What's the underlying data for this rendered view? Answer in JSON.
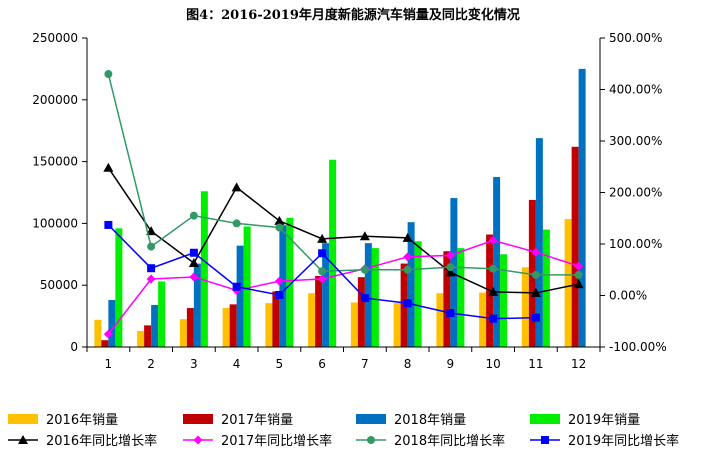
{
  "chart_data": {
    "type": "bar",
    "title": "图4：2016-2019年月度新能源汽车销量及同比变化情况",
    "categories": [
      "1",
      "2",
      "3",
      "4",
      "5",
      "6",
      "7",
      "8",
      "9",
      "10",
      "11",
      "12"
    ],
    "y_left": {
      "min": 0,
      "max": 250000,
      "ticks": [
        "0",
        "50000",
        "100000",
        "150000",
        "200000",
        "250000"
      ],
      "tick_values": [
        0,
        50000,
        100000,
        150000,
        200000,
        250000
      ]
    },
    "y_right": {
      "min": -100,
      "max": 500,
      "ticks": [
        "-100.00%",
        "0.00%",
        "100.00%",
        "200.00%",
        "300.00%",
        "400.00%",
        "500.00%"
      ],
      "tick_values": [
        -100,
        0,
        100,
        200,
        300,
        400,
        500
      ]
    },
    "series": [
      {
        "name": "2016年销量",
        "type": "bar",
        "axis": "left",
        "color": "#FFC000",
        "values": [
          22000,
          13000,
          22500,
          31500,
          35500,
          43500,
          36000,
          35500,
          43500,
          44000,
          64500,
          103500
        ]
      },
      {
        "name": "2017年销量",
        "type": "bar",
        "axis": "left",
        "color": "#C00000",
        "values": [
          5500,
          17500,
          31500,
          34500,
          45000,
          57500,
          56500,
          67500,
          77500,
          91000,
          119000,
          162000
        ]
      },
      {
        "name": "2018年销量",
        "type": "bar",
        "axis": "left",
        "color": "#0070C0",
        "values": [
          38000,
          34000,
          67500,
          82000,
          98500,
          84000,
          84000,
          101000,
          120500,
          137500,
          169000,
          225000
        ]
      },
      {
        "name": "2019年销量",
        "type": "bar",
        "axis": "left",
        "color": "#00EE00",
        "values": [
          96000,
          53000,
          126000,
          97500,
          104500,
          151500,
          80000,
          85500,
          80000,
          75000,
          95000,
          null
        ]
      },
      {
        "name": "2016年同比增长率",
        "type": "line",
        "axis": "right",
        "color": "#000000",
        "marker": "triangle",
        "values": [
          248,
          125,
          63,
          210,
          145,
          110,
          115,
          112,
          45,
          7,
          5,
          22
        ]
      },
      {
        "name": "2017年同比增长率",
        "type": "line",
        "axis": "right",
        "color": "#FF00FF",
        "marker": "diamond",
        "values": [
          -75,
          32,
          36,
          10,
          28,
          32,
          52,
          75,
          78,
          107,
          84,
          57
        ]
      },
      {
        "name": "2018年同比增长率",
        "type": "line",
        "axis": "right",
        "color": "#339966",
        "marker": "circle",
        "values": [
          430,
          95,
          155,
          140,
          132,
          47,
          50,
          50,
          55,
          52,
          40,
          40
        ]
      },
      {
        "name": "2019年同比增长率",
        "type": "line",
        "axis": "right",
        "color": "#0000FF",
        "marker": "square",
        "values": [
          137,
          53,
          83,
          17,
          1,
          82,
          -5,
          -15,
          -34,
          -45,
          -43,
          null
        ]
      }
    ],
    "legend_position": "bottom"
  }
}
